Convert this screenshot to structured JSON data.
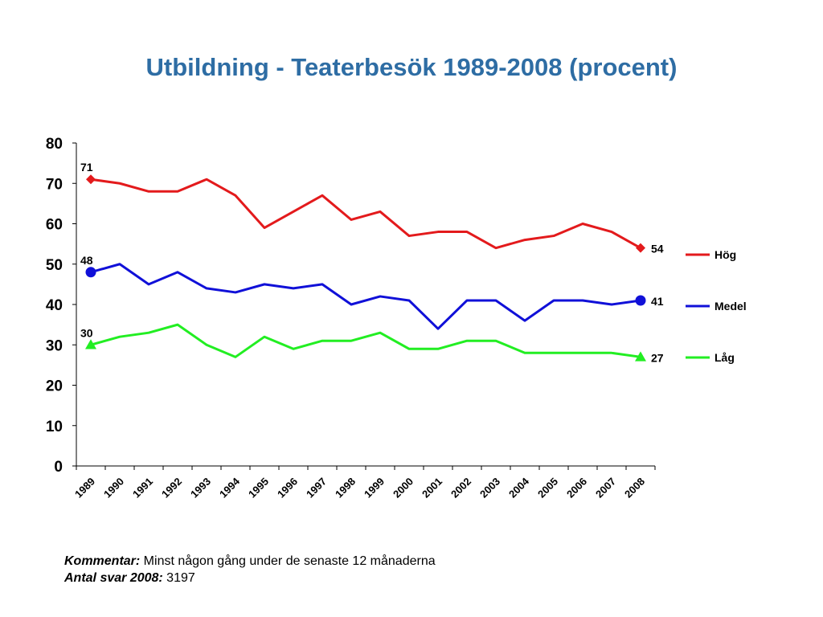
{
  "chart_data": {
    "type": "line",
    "title": "Utbildning - Teaterbesök 1989-2008 (procent)",
    "categories": [
      "1989",
      "1990",
      "1991",
      "1992",
      "1993",
      "1994",
      "1995",
      "1996",
      "1997",
      "1998",
      "1999",
      "2000",
      "2001",
      "2002",
      "2003",
      "2004",
      "2005",
      "2006",
      "2007",
      "2008"
    ],
    "ylim": [
      0,
      80
    ],
    "yticks": [
      0,
      10,
      20,
      30,
      40,
      50,
      60,
      70,
      80
    ],
    "grid": false,
    "legend_position": "right",
    "series": [
      {
        "name": "Hög",
        "color": "#E31A1C",
        "marker": "diamond",
        "values": [
          71,
          70,
          68,
          68,
          71,
          67,
          59,
          63,
          67,
          61,
          63,
          57,
          58,
          58,
          54,
          56,
          57,
          60,
          58,
          54
        ],
        "first_label": "71",
        "last_label": "54"
      },
      {
        "name": "Medel",
        "color": "#1010D8",
        "marker": "circle",
        "values": [
          48,
          50,
          45,
          48,
          44,
          43,
          45,
          44,
          45,
          40,
          42,
          41,
          34,
          41,
          41,
          36,
          41,
          41,
          40,
          41
        ],
        "first_label": "48",
        "last_label": "41"
      },
      {
        "name": "Låg",
        "color": "#22EE22",
        "marker": "triangle",
        "values": [
          30,
          32,
          33,
          35,
          30,
          27,
          32,
          29,
          31,
          31,
          33,
          29,
          29,
          31,
          31,
          28,
          28,
          28,
          28,
          27
        ],
        "first_label": "30",
        "last_label": "27"
      }
    ]
  },
  "footnote": {
    "comment_label": "Kommentar:",
    "comment_text": " Minst någon gång under de senaste 12 månaderna",
    "answers_label": "Antal svar 2008:",
    "answers_text": " 3197"
  }
}
